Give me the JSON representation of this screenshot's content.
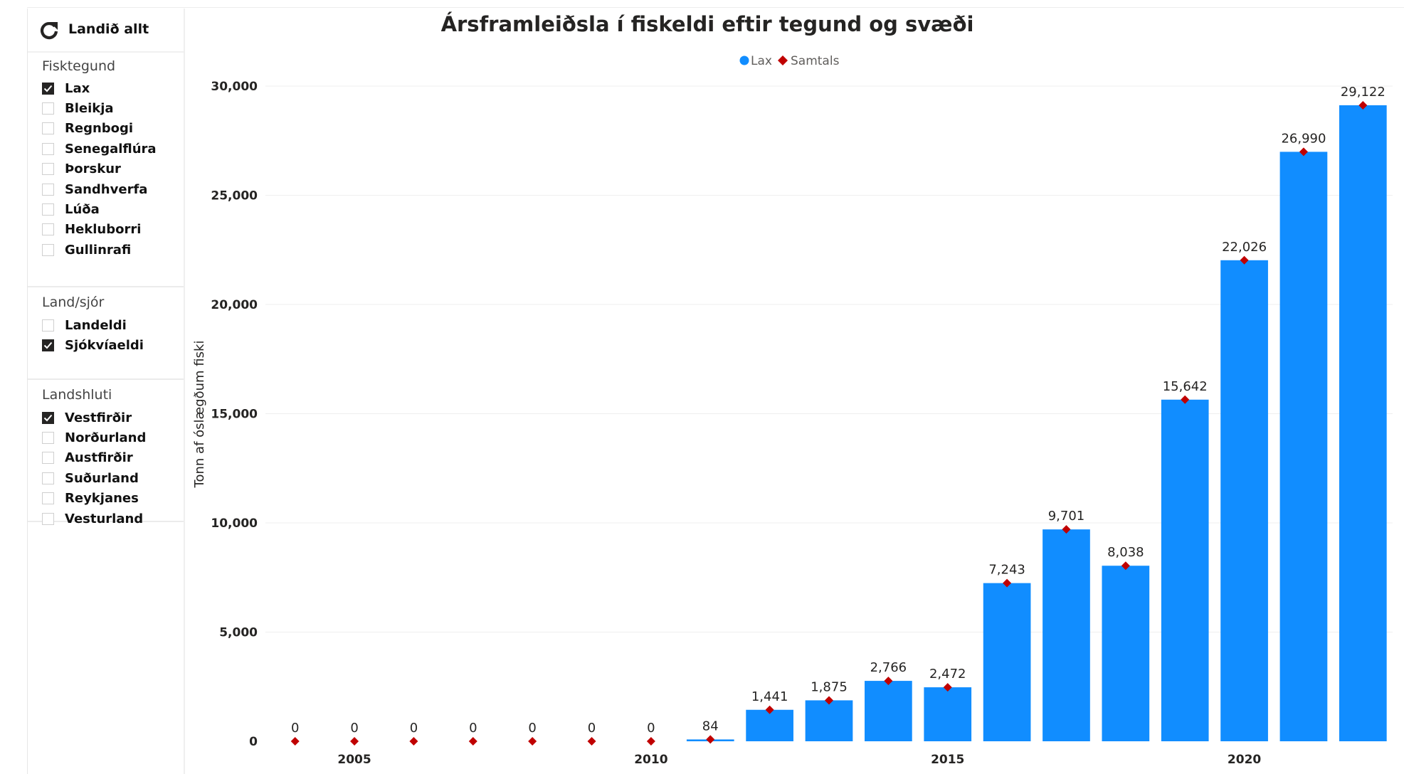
{
  "reset_button": {
    "label": "Landið allt",
    "icon": "refresh-icon"
  },
  "slicers": [
    {
      "title": "Fisktegund",
      "items": [
        {
          "label": "Lax",
          "checked": true
        },
        {
          "label": "Bleikja",
          "checked": false
        },
        {
          "label": "Regnbogi",
          "checked": false
        },
        {
          "label": "Senegalflúra",
          "checked": false
        },
        {
          "label": "Þorskur",
          "checked": false
        },
        {
          "label": "Sandhverfa",
          "checked": false
        },
        {
          "label": "Lúða",
          "checked": false
        },
        {
          "label": "Hekluborri",
          "checked": false
        },
        {
          "label": "Gullinrafi",
          "checked": false
        }
      ]
    },
    {
      "title": "Land/sjór",
      "items": [
        {
          "label": "Landeldi",
          "checked": false
        },
        {
          "label": "Sjókvíaeldi",
          "checked": true
        }
      ]
    },
    {
      "title": "Landshluti",
      "items": [
        {
          "label": "Vestfirðir",
          "checked": true
        },
        {
          "label": "Norðurland",
          "checked": false
        },
        {
          "label": "Austfirðir",
          "checked": false
        },
        {
          "label": "Suðurland",
          "checked": false
        },
        {
          "label": "Reykjanes",
          "checked": false
        },
        {
          "label": "Vesturland",
          "checked": false
        }
      ]
    }
  ],
  "chart_data": {
    "type": "bar",
    "title": "Ársframleiðsla í fiskeldi eftir tegund og svæði",
    "ylabel": "Tonn af óslægðum fiski",
    "xlabel": "",
    "legend": [
      {
        "name": "Lax",
        "marker": "circle",
        "color": "#118DFF"
      },
      {
        "name": "Samtals",
        "marker": "diamond",
        "color": "#C00000"
      }
    ],
    "legend_position": "top-center",
    "x": [
      2004,
      2005,
      2006,
      2007,
      2008,
      2009,
      2010,
      2011,
      2012,
      2013,
      2014,
      2015,
      2016,
      2017,
      2018,
      2019,
      2020,
      2021,
      2022
    ],
    "x_tick_labels": [
      "2005",
      "2010",
      "2015",
      "2020"
    ],
    "series": [
      {
        "name": "Lax",
        "type": "bar",
        "color": "#118DFF",
        "values": [
          0,
          0,
          0,
          0,
          0,
          0,
          0,
          84,
          1441,
          1875,
          2766,
          2472,
          7243,
          9701,
          8038,
          15642,
          22026,
          26990,
          29122
        ]
      },
      {
        "name": "Samtals",
        "type": "marker",
        "color": "#C00000",
        "values": [
          0,
          0,
          0,
          0,
          0,
          0,
          0,
          84,
          1441,
          1875,
          2766,
          2472,
          7243,
          9701,
          8038,
          15642,
          22026,
          26990,
          29122
        ]
      }
    ],
    "data_labels": [
      "0",
      "0",
      "0",
      "0",
      "0",
      "0",
      "0",
      "84",
      "1,441",
      "1,875",
      "2,766",
      "2,472",
      "7,243",
      "9,701",
      "8,038",
      "15,642",
      "22,026",
      "26,990",
      "29,122"
    ],
    "y_ticks": [
      0,
      5000,
      10000,
      15000,
      20000,
      25000,
      30000
    ],
    "y_tick_labels": [
      "0",
      "5,000",
      "10,000",
      "15,000",
      "20,000",
      "25,000",
      "30,000"
    ],
    "ylim": [
      0,
      30000
    ],
    "grid": true
  }
}
